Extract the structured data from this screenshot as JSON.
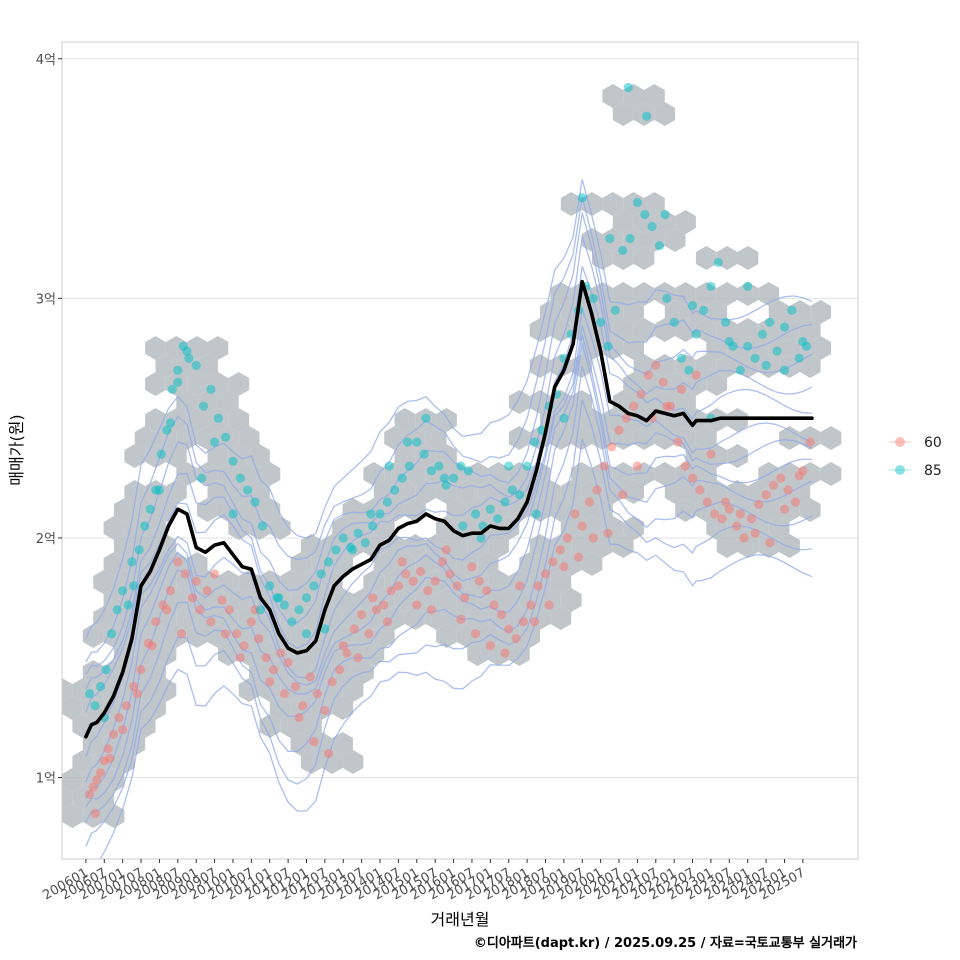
{
  "chart_data": {
    "type": "scatter",
    "xlabel": "거래년월",
    "ylabel": "매매가(원)",
    "caption": "©디아파트(dapt.kr) / 2025.09.25 / 자료=국토교통부 실거래가",
    "x_tick_labels": [
      "200601",
      "200607",
      "200701",
      "200707",
      "200801",
      "200807",
      "200901",
      "200907",
      "201001",
      "201007",
      "201101",
      "201107",
      "201201",
      "201207",
      "201301",
      "201307",
      "201401",
      "201407",
      "201501",
      "201507",
      "201601",
      "201607",
      "201701",
      "201707",
      "201801",
      "201807",
      "201901",
      "201907",
      "202001",
      "202007",
      "202101",
      "202107",
      "202201",
      "202207",
      "202301",
      "202307",
      "202401",
      "202407",
      "202501",
      "202507"
    ],
    "y_ticks": [
      {
        "value": 1.0,
        "label": "1억"
      },
      {
        "value": 2.0,
        "label": "2억"
      },
      {
        "value": 3.0,
        "label": "3억"
      },
      {
        "value": 4.0,
        "label": "4억"
      }
    ],
    "x_range": [
      -1.3,
      42.0
    ],
    "ylim": [
      0.66,
      4.07
    ],
    "legend": {
      "position": "right",
      "entries": [
        {
          "name": "60",
          "color": "#F8766D"
        },
        {
          "name": "85",
          "color": "#00BFC4"
        }
      ]
    },
    "colors": {
      "hex_fill": "#b6bcc2",
      "contour": "#8fa9e8",
      "trend": "#000000",
      "grid": "#e3e3e3",
      "panel_border": "#cccccc"
    },
    "trend_line": {
      "name": "price trend",
      "x": [
        0,
        0.3,
        0.6,
        1,
        1.5,
        2,
        2.5,
        3,
        3.5,
        4,
        4.5,
        5,
        5.5,
        6,
        6.5,
        7,
        7.5,
        8,
        8.5,
        9,
        9.5,
        10,
        10.5,
        11,
        11.5,
        12,
        12.5,
        13,
        13.5,
        14,
        14.5,
        15,
        15.5,
        16,
        16.5,
        17,
        17.5,
        18,
        18.5,
        19,
        19.5,
        20,
        20.5,
        21,
        21.5,
        22,
        22.5,
        23,
        23.5,
        24,
        24.5,
        25,
        25.5,
        26,
        26.5,
        27,
        27.5,
        28,
        28.5,
        29,
        29.5,
        30,
        30.5,
        31,
        31.5,
        32,
        32.5,
        33,
        33.2,
        33.5,
        34,
        34.5,
        35,
        35.5,
        36,
        36.5,
        37,
        37.5,
        38,
        38.5,
        39,
        39.5,
        40,
        40.5
      ],
      "y": [
        1.17,
        1.22,
        1.23,
        1.27,
        1.34,
        1.44,
        1.58,
        1.8,
        1.86,
        1.95,
        2.05,
        2.12,
        2.1,
        1.96,
        1.94,
        1.97,
        1.98,
        1.93,
        1.88,
        1.87,
        1.75,
        1.7,
        1.6,
        1.54,
        1.52,
        1.53,
        1.57,
        1.7,
        1.8,
        1.84,
        1.87,
        1.89,
        1.91,
        1.97,
        1.99,
        2.04,
        2.06,
        2.07,
        2.1,
        2.08,
        2.07,
        2.03,
        2.01,
        2.02,
        2.02,
        2.05,
        2.04,
        2.04,
        2.08,
        2.15,
        2.28,
        2.44,
        2.63,
        2.7,
        2.81,
        3.07,
        2.94,
        2.78,
        2.57,
        2.55,
        2.52,
        2.51,
        2.49,
        2.53,
        2.52,
        2.51,
        2.52,
        2.47,
        2.49,
        2.49,
        2.49,
        2.5,
        2.5,
        2.5,
        2.5,
        2.5,
        2.5,
        2.5,
        2.5,
        2.5,
        2.5,
        2.5,
        2.5,
        2.5
      ],
      "x_end": 39.6
    },
    "series": [
      {
        "name": "60",
        "color": "#F8766D",
        "x": [
          0.2,
          0.4,
          0.6,
          0.8,
          1.0,
          1.2,
          1.5,
          1.8,
          2.2,
          2.6,
          3.0,
          3.4,
          3.8,
          4.2,
          4.6,
          5.0,
          5.4,
          5.8,
          6.2,
          6.6,
          7.0,
          7.4,
          7.8,
          8.2,
          8.6,
          9.0,
          9.4,
          9.8,
          10.2,
          10.6,
          11.0,
          11.4,
          11.8,
          12.2,
          12.6,
          13.0,
          13.4,
          13.8,
          14.2,
          14.6,
          15.0,
          15.4,
          15.8,
          16.2,
          16.6,
          17.0,
          17.4,
          17.8,
          18.2,
          18.6,
          19.0,
          19.4,
          19.8,
          20.2,
          20.6,
          21.0,
          21.4,
          21.8,
          22.2,
          22.6,
          23.0,
          23.4,
          23.8,
          24.2,
          24.6,
          25.0,
          25.4,
          25.8,
          26.2,
          26.6,
          27.0,
          27.4,
          27.8,
          28.2,
          28.6,
          29.0,
          29.4,
          29.8,
          30.2,
          30.6,
          31.0,
          31.4,
          31.8,
          32.2,
          32.6,
          33.0,
          33.4,
          33.8,
          34.2,
          34.6,
          35.0,
          35.4,
          35.8,
          36.2,
          36.6,
          37.0,
          37.4,
          37.8,
          38.2,
          38.6,
          39.0,
          39.4,
          0.5,
          1.3,
          2.0,
          2.8,
          3.6,
          4.4,
          5.2,
          6.0,
          6.8,
          7.6,
          8.4,
          9.2,
          10.0,
          10.8,
          11.6,
          12.4,
          13.2,
          14.0,
          14.8,
          15.6,
          16.4,
          17.2,
          18.0,
          18.8,
          19.6,
          20.4,
          21.2,
          22.0,
          22.8,
          23.6,
          24.4,
          25.2,
          26.0,
          26.8,
          27.6,
          28.4,
          29.2,
          30.0,
          30.8,
          31.6,
          32.4,
          33.2,
          34.0,
          34.8,
          35.6,
          36.4,
          37.2,
          38.0,
          38.8
        ],
        "y": [
          0.93,
          0.96,
          0.99,
          1.02,
          1.07,
          1.12,
          1.18,
          1.25,
          1.3,
          1.38,
          1.45,
          1.56,
          1.65,
          1.72,
          1.78,
          1.9,
          1.85,
          1.75,
          1.7,
          1.78,
          1.85,
          1.74,
          1.7,
          1.6,
          1.55,
          1.65,
          1.58,
          1.5,
          1.45,
          1.52,
          1.48,
          1.38,
          1.3,
          1.42,
          1.35,
          1.28,
          1.4,
          1.45,
          1.52,
          1.62,
          1.68,
          1.6,
          1.7,
          1.72,
          1.78,
          1.8,
          1.85,
          1.82,
          1.86,
          1.78,
          1.82,
          1.9,
          1.85,
          1.8,
          1.75,
          1.88,
          1.82,
          1.78,
          1.72,
          1.68,
          1.62,
          1.58,
          1.65,
          1.72,
          1.8,
          1.85,
          1.9,
          1.95,
          2.0,
          2.1,
          2.05,
          2.15,
          2.2,
          2.3,
          2.38,
          2.45,
          2.5,
          2.55,
          2.6,
          2.68,
          2.72,
          2.65,
          2.55,
          2.4,
          2.3,
          2.25,
          2.2,
          2.15,
          2.1,
          2.08,
          2.12,
          2.05,
          2.0,
          2.08,
          2.14,
          2.18,
          2.22,
          2.25,
          2.2,
          2.15,
          2.28,
          2.4,
          0.85,
          1.08,
          1.2,
          1.35,
          1.55,
          1.7,
          1.6,
          1.82,
          1.65,
          1.6,
          1.5,
          1.7,
          1.4,
          1.35,
          1.25,
          1.15,
          1.1,
          1.55,
          1.5,
          1.75,
          1.65,
          1.9,
          1.72,
          1.7,
          1.95,
          1.66,
          1.6,
          1.55,
          1.52,
          1.8,
          1.65,
          1.72,
          1.88,
          1.92,
          2.0,
          2.02,
          2.18,
          2.3,
          2.5,
          2.55,
          2.62,
          2.68,
          2.35,
          2.15,
          2.1,
          2.02,
          1.98,
          2.12,
          2.26
        ]
      },
      {
        "name": "85",
        "color": "#00BFC4",
        "x": [
          0.2,
          0.5,
          0.8,
          1.1,
          1.4,
          1.7,
          2.0,
          2.3,
          2.6,
          2.9,
          3.2,
          3.5,
          3.8,
          4.1,
          4.4,
          4.7,
          5.0,
          5.3,
          5.6,
          6.0,
          6.4,
          6.8,
          7.2,
          7.6,
          8.0,
          8.4,
          8.8,
          9.2,
          9.6,
          10.0,
          10.4,
          10.8,
          11.2,
          11.6,
          12.0,
          12.4,
          12.8,
          13.2,
          13.6,
          14.0,
          14.4,
          14.8,
          15.2,
          15.6,
          16.0,
          16.4,
          16.8,
          17.2,
          17.6,
          18.0,
          18.4,
          18.8,
          19.2,
          19.6,
          20.0,
          20.4,
          20.8,
          21.2,
          21.6,
          22.0,
          22.4,
          22.8,
          23.2,
          23.6,
          24.0,
          24.4,
          24.8,
          25.2,
          25.6,
          26.0,
          26.4,
          26.8,
          27.2,
          27.6,
          28.0,
          28.4,
          28.8,
          29.2,
          29.6,
          30.0,
          30.4,
          30.8,
          31.2,
          31.6,
          32.0,
          32.4,
          32.8,
          33.2,
          33.6,
          34.0,
          34.4,
          34.8,
          35.2,
          35.6,
          36.0,
          36.4,
          36.8,
          37.2,
          37.6,
          38.0,
          38.4,
          38.8,
          39.2,
          1.0,
          2.5,
          4.0,
          4.6,
          5.0,
          5.5,
          6.3,
          7.0,
          8.0,
          9.5,
          10.5,
          12.0,
          13.0,
          14.5,
          15.5,
          16.5,
          17.5,
          18.5,
          19.5,
          20.5,
          21.5,
          23.0,
          24.5,
          26.0,
          27.0,
          28.5,
          29.5,
          30.5,
          31.5,
          33.0,
          34.0,
          35.0,
          36.0,
          37.0,
          38.0,
          39.0
        ],
        "y": [
          1.35,
          1.3,
          1.38,
          1.45,
          1.6,
          1.7,
          1.78,
          1.72,
          1.8,
          1.95,
          2.05,
          2.12,
          2.2,
          2.35,
          2.45,
          2.62,
          2.7,
          2.8,
          2.75,
          2.72,
          2.55,
          2.62,
          2.5,
          2.42,
          2.32,
          2.25,
          2.2,
          2.15,
          2.05,
          1.8,
          1.75,
          1.72,
          1.65,
          1.7,
          1.75,
          1.8,
          1.85,
          1.9,
          1.95,
          2.0,
          1.96,
          2.02,
          1.98,
          2.05,
          2.1,
          2.15,
          2.2,
          2.25,
          2.3,
          2.4,
          2.35,
          2.28,
          2.3,
          2.22,
          2.25,
          2.3,
          2.28,
          2.1,
          2.05,
          2.12,
          2.08,
          2.15,
          2.2,
          2.18,
          2.3,
          2.4,
          2.45,
          2.55,
          2.6,
          2.75,
          2.85,
          2.95,
          3.05,
          3.0,
          2.9,
          2.8,
          2.95,
          3.2,
          3.25,
          3.4,
          3.35,
          3.3,
          3.22,
          3.0,
          2.9,
          2.75,
          2.7,
          2.85,
          2.95,
          3.05,
          3.15,
          2.9,
          2.8,
          2.7,
          2.8,
          2.75,
          2.85,
          2.9,
          2.78,
          2.7,
          2.95,
          2.75,
          2.8,
          1.25,
          1.9,
          2.2,
          2.48,
          2.65,
          2.78,
          2.25,
          2.4,
          2.1,
          1.7,
          1.75,
          1.6,
          1.62,
          1.95,
          2.1,
          2.3,
          2.4,
          2.5,
          2.25,
          2.05,
          2.0,
          2.3,
          2.1,
          2.5,
          3.42,
          3.25,
          3.88,
          3.76,
          3.35,
          2.97,
          2.5,
          2.82,
          3.05,
          2.72,
          2.88,
          2.82
        ]
      }
    ]
  }
}
